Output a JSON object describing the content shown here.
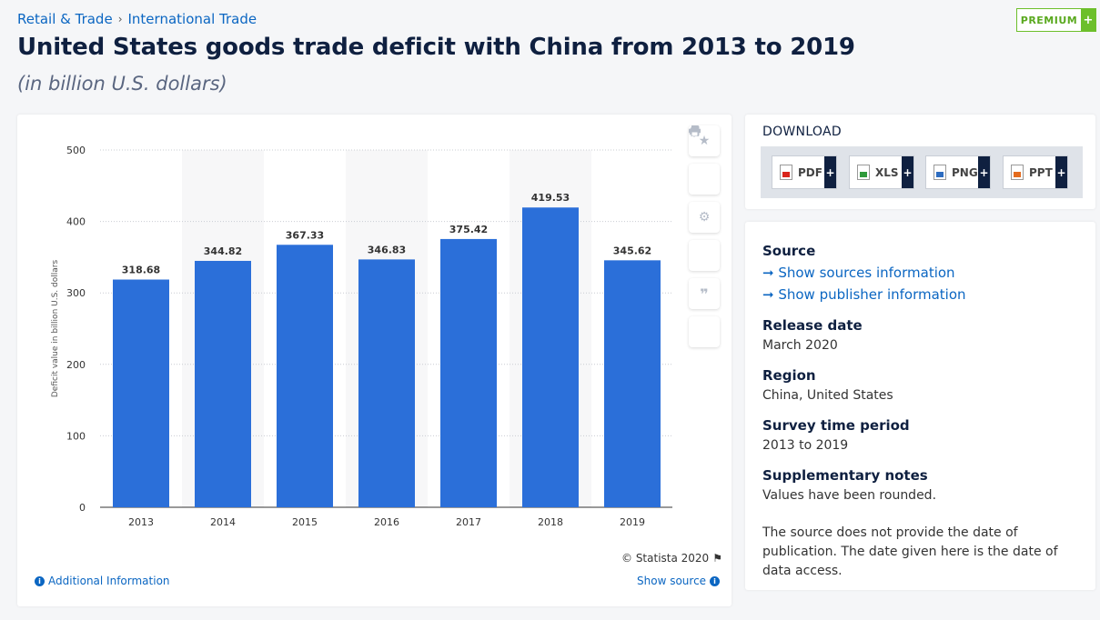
{
  "breadcrumb": {
    "item1": "Retail & Trade",
    "separator": "›",
    "item2": "International Trade"
  },
  "premium": {
    "label": "PREMIUM",
    "plus": "+"
  },
  "title": "United States goods trade deficit with China from 2013 to 2019",
  "subtitle": "(in billion U.S. dollars)",
  "chart_data": {
    "type": "bar",
    "categories": [
      "2013",
      "2014",
      "2015",
      "2016",
      "2017",
      "2018",
      "2019"
    ],
    "values": [
      318.68,
      344.82,
      367.33,
      346.83,
      375.42,
      419.53,
      345.62
    ],
    "value_labels": [
      "318.68",
      "344.82",
      "367.33",
      "346.83",
      "375.42",
      "419.53",
      "345.62"
    ],
    "ylabel": "Deficit value in billion U.S. dollars",
    "ylim": [
      0,
      500
    ],
    "yticks": [
      "0",
      "100",
      "200",
      "300",
      "400",
      "500"
    ],
    "bar_color": "#2b6fd9",
    "grid": true
  },
  "tools": [
    "star-icon",
    "bell-icon",
    "gear-icon",
    "share-icon",
    "quote-icon",
    "print-icon"
  ],
  "footer": {
    "copyright": "© Statista 2020",
    "additional": "Additional Information",
    "show_source": "Show source"
  },
  "download": {
    "title": "DOWNLOAD",
    "buttons": [
      "PDF",
      "XLS",
      "PNG",
      "PPT"
    ],
    "plus": "+"
  },
  "info": {
    "source_heading": "Source",
    "link_sources": "➞ Show sources information",
    "link_publisher": "➞ Show publisher information",
    "release_heading": "Release date",
    "release_value": "March 2020",
    "region_heading": "Region",
    "region_value": "China, United States",
    "survey_heading": "Survey time period",
    "survey_value": "2013 to 2019",
    "notes_heading": "Supplementary notes",
    "notes_value": "Values have been rounded.",
    "publication_note": "The source does not provide the date of publication. The date given here is the date of data access."
  }
}
